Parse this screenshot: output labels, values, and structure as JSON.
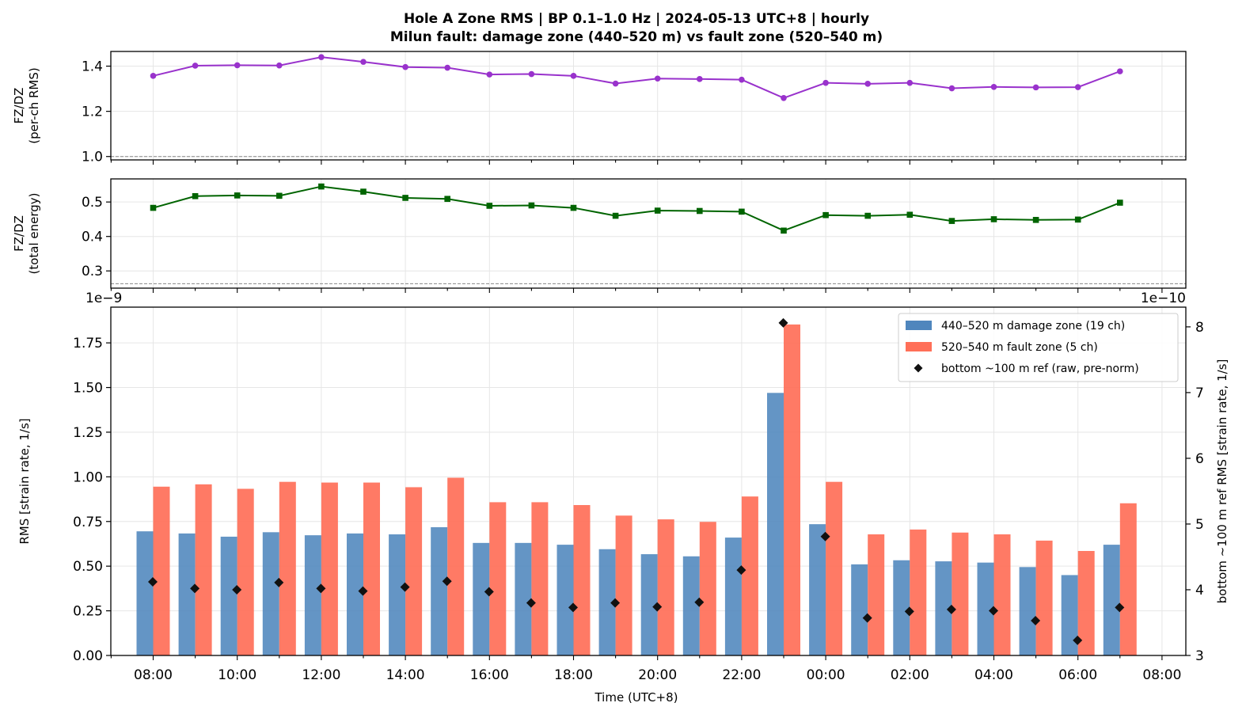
{
  "chart_data": {
    "type": "bar",
    "title": "Hole A Zone RMS  |  BP 0.1–1.0 Hz  |  2024-05-13 UTC+8  |  hourly",
    "subtitle": "Milun fault: damage zone (440–520 m) vs fault zone (520–540 m)",
    "xlabel": "Time (UTC+8)",
    "x_tick_labels": [
      "08:00",
      "10:00",
      "12:00",
      "14:00",
      "16:00",
      "18:00",
      "20:00",
      "22:00",
      "00:00",
      "02:00",
      "04:00",
      "06:00",
      "08:00"
    ],
    "categories": [
      "08:00",
      "09:00",
      "10:00",
      "11:00",
      "12:00",
      "13:00",
      "14:00",
      "15:00",
      "16:00",
      "17:00",
      "18:00",
      "19:00",
      "20:00",
      "21:00",
      "22:00",
      "23:00",
      "00:00",
      "01:00",
      "02:00",
      "03:00",
      "04:00",
      "05:00",
      "06:00",
      "07:00"
    ],
    "panels": [
      {
        "name": "ratio-per-channel",
        "type": "line",
        "ylabel": [
          "FZ/DZ",
          "(per-ch RMS)"
        ],
        "ylim": [
          0.985,
          1.465
        ],
        "yticks": [
          1.0,
          1.2,
          1.4
        ],
        "tick_labels": [
          "1.0",
          "1.2",
          "1.4"
        ],
        "reference_line": 1.0,
        "color": "#9932cc",
        "marker": "circle",
        "values": [
          1.357,
          1.402,
          1.404,
          1.403,
          1.44,
          1.419,
          1.396,
          1.393,
          1.363,
          1.365,
          1.357,
          1.323,
          1.345,
          1.343,
          1.34,
          1.259,
          1.326,
          1.322,
          1.326,
          1.302,
          1.308,
          1.306,
          1.307,
          1.377
        ]
      },
      {
        "name": "ratio-total-energy",
        "type": "line",
        "ylabel": [
          "FZ/DZ",
          "(total energy)"
        ],
        "ylim": [
          0.25,
          0.567
        ],
        "yticks": [
          0.3,
          0.4,
          0.5
        ],
        "tick_labels": [
          "0.3",
          "0.4",
          "0.5"
        ],
        "reference_line": 0.263,
        "color": "#006400",
        "marker": "square",
        "values": [
          0.483,
          0.517,
          0.519,
          0.518,
          0.545,
          0.53,
          0.512,
          0.509,
          0.489,
          0.49,
          0.483,
          0.46,
          0.475,
          0.474,
          0.472,
          0.417,
          0.462,
          0.46,
          0.463,
          0.445,
          0.45,
          0.448,
          0.449,
          0.498
        ]
      },
      {
        "name": "zone-rms",
        "type": "bar",
        "ylabel": "RMS  [strain rate, 1/s]",
        "ylabel_right": "bottom ~100 m ref RMS  [strain rate, 1/s]",
        "offset_label_left": "1e−9",
        "offset_label_right": "1e−10",
        "ylim": [
          0,
          1.95
        ],
        "yticks": [
          0,
          0.25,
          0.5,
          0.75,
          1.0,
          1.25,
          1.5,
          1.75
        ],
        "tick_labels": [
          "0.00",
          "0.25",
          "0.50",
          "0.75",
          "1.00",
          "1.25",
          "1.50",
          "1.75"
        ],
        "ylim_right": [
          3,
          8.3
        ],
        "yticks_right": [
          3,
          4,
          5,
          6,
          7,
          8
        ],
        "tick_labels_right": [
          "3",
          "4",
          "5",
          "6",
          "7",
          "8"
        ],
        "series": [
          {
            "name": "440–520 m  damage zone (19 ch)",
            "color": "#4f86bd",
            "values": [
              0.695,
              0.683,
              0.665,
              0.69,
              0.673,
              0.683,
              0.678,
              0.718,
              0.63,
              0.63,
              0.62,
              0.595,
              0.567,
              0.555,
              0.66,
              1.47,
              0.735,
              0.51,
              0.533,
              0.527,
              0.52,
              0.495,
              0.45,
              0.62
            ]
          },
          {
            "name": "520–540 m  fault zone (5 ch)",
            "color": "#ff6f58",
            "values": [
              0.945,
              0.958,
              0.933,
              0.972,
              0.968,
              0.968,
              0.942,
              0.995,
              0.858,
              0.858,
              0.842,
              0.783,
              0.762,
              0.748,
              0.89,
              1.853,
              0.972,
              0.678,
              0.705,
              0.688,
              0.678,
              0.643,
              0.585,
              0.852
            ]
          },
          {
            "name": "bottom ~100 m ref (raw, pre-norm)",
            "color": "#111111",
            "type": "scatter",
            "axis": "right",
            "values": [
              4.12,
              4.02,
              4.0,
              4.11,
              4.02,
              3.98,
              4.04,
              4.13,
              3.97,
              3.8,
              3.73,
              3.8,
              3.74,
              3.81,
              4.3,
              8.06,
              4.81,
              3.57,
              3.67,
              3.7,
              3.68,
              3.53,
              3.23,
              3.73
            ]
          }
        ],
        "legend": "top-right"
      }
    ],
    "grid": true
  }
}
